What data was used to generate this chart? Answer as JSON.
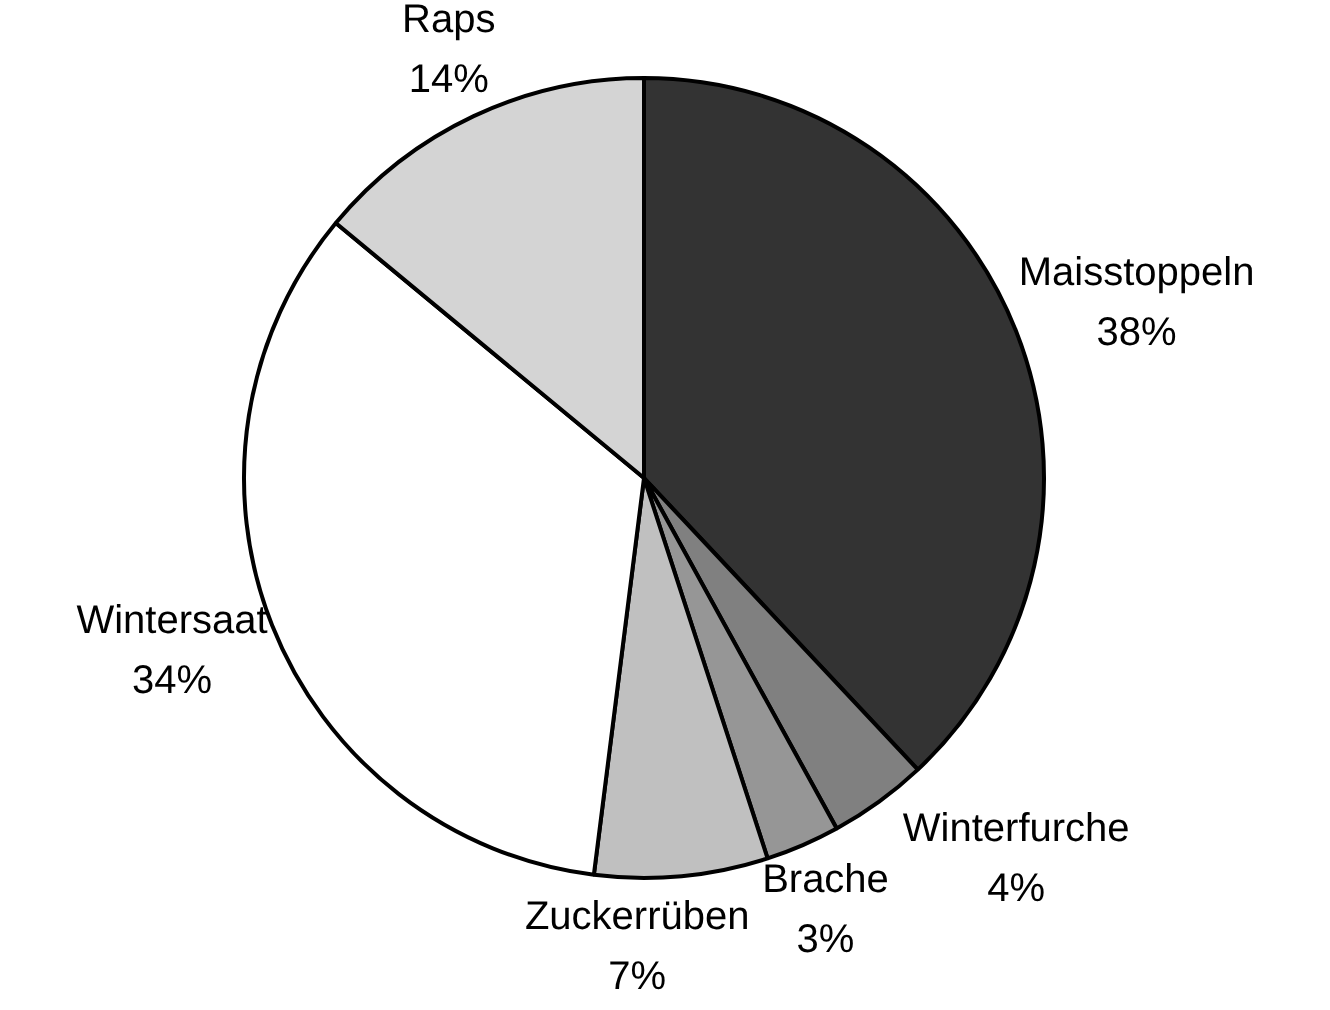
{
  "chart_data": {
    "type": "pie",
    "categories": [
      "Maisstoppeln",
      "Winterfurche",
      "Brache",
      "Zuckerrüben",
      "Wintersaat",
      "Raps"
    ],
    "values": [
      38,
      4,
      3,
      7,
      34,
      14
    ],
    "colors": [
      "#333333",
      "#808080",
      "#969696",
      "#c0c0c0",
      "#ffffff",
      "#d4d4d4"
    ],
    "value_labels": [
      "38%",
      "4%",
      "3%",
      "7%",
      "34%",
      "14%"
    ],
    "legend": false
  }
}
